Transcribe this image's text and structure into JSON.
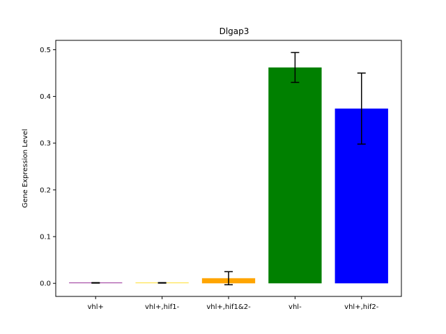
{
  "chart_data": {
    "type": "bar",
    "title": "Dlgap3",
    "xlabel": "",
    "ylabel": "Gene Expression Level",
    "categories": [
      "vhl+",
      "vhl+,hif1-",
      "vhl+,hif1&2-",
      "vhl-",
      "vhl+,hif2-"
    ],
    "values": [
      0.001,
      0.001,
      0.011,
      0.462,
      0.374
    ],
    "errors": [
      0.0005,
      0.0005,
      0.014,
      0.032,
      0.076
    ],
    "colors": [
      "#800080",
      "#ffd700",
      "#ffa500",
      "#008000",
      "#0000ff"
    ],
    "ylim": [
      -0.028,
      0.52
    ],
    "yticks": [
      0.0,
      0.1,
      0.2,
      0.3,
      0.4,
      0.5
    ],
    "ytick_labels": [
      "0.0",
      "0.1",
      "0.2",
      "0.3",
      "0.4",
      "0.5"
    ],
    "grid": false
  }
}
